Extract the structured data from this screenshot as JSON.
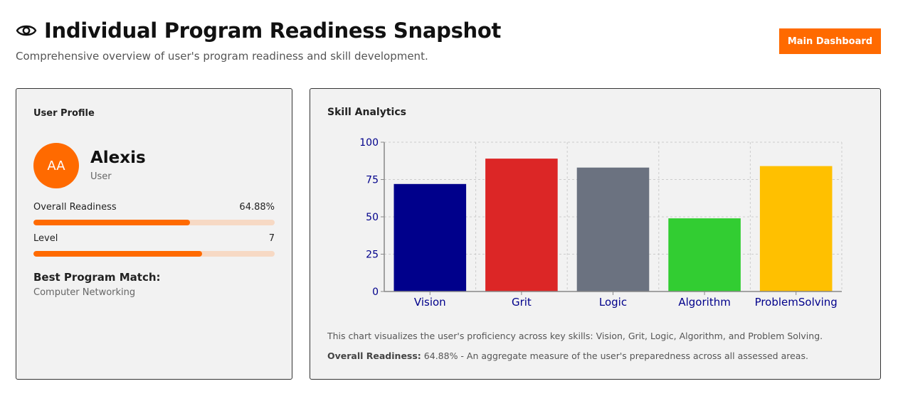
{
  "header": {
    "title": "Individual Program Readiness Snapshot",
    "subtitle": "Comprehensive overview of user's program readiness and skill development.",
    "dashboard_button": "Main Dashboard",
    "icon": "eye-icon"
  },
  "profile": {
    "card_title": "User Profile",
    "initials": "AA",
    "name": "Alexis",
    "role": "User",
    "readiness_label": "Overall Readiness",
    "readiness_value": "64.88%",
    "readiness_fraction": 0.6488,
    "level_label": "Level",
    "level_value": "7",
    "level_fraction": 0.7,
    "best_match_label": "Best Program Match:",
    "best_match_value": "Computer Networking",
    "accent": "#ff6a00",
    "track": "#f7d9c4"
  },
  "skills": {
    "card_title": "Skill Analytics",
    "description": "This chart visualizes the user's proficiency across key skills: Vision, Grit, Logic, Algorithm, and Problem Solving.",
    "overall_label": "Overall Readiness:",
    "overall_text": " 64.88% - An aggregate measure of the user's preparedness across all assessed areas."
  },
  "chart_data": {
    "type": "bar",
    "categories": [
      "Vision",
      "Grit",
      "Logic",
      "Algorithm",
      "ProblemSolving"
    ],
    "values": [
      72,
      89,
      83,
      49,
      84
    ],
    "colors": [
      "#00008b",
      "#dc2626",
      "#6b7280",
      "#32cd32",
      "#ffc000"
    ],
    "ylim": [
      0,
      100
    ],
    "yticks": [
      0,
      25,
      50,
      75,
      100
    ],
    "grid": true,
    "xlabel": "",
    "ylabel": ""
  }
}
